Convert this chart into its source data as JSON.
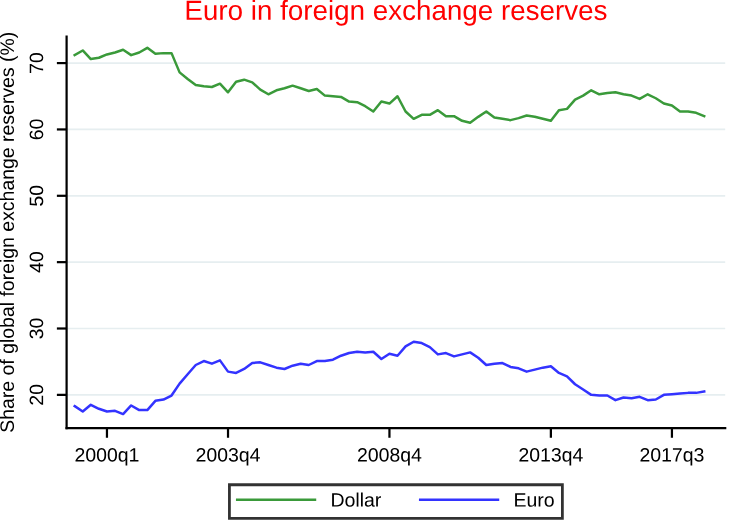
{
  "chart_data": {
    "type": "line",
    "title": "Euro in foreign exchange reserves",
    "ylabel": "Share of global foreign exchange reserves (%)",
    "categories": [
      null,
      null,
      null,
      null,
      "2000q1",
      null,
      null,
      null,
      null,
      null,
      null,
      null,
      null,
      null,
      null,
      null,
      null,
      null,
      null,
      "2003q4",
      null,
      null,
      null,
      null,
      null,
      null,
      null,
      null,
      null,
      null,
      null,
      null,
      null,
      null,
      null,
      null,
      null,
      null,
      null,
      "2008q4",
      null,
      null,
      null,
      null,
      null,
      null,
      null,
      null,
      null,
      null,
      null,
      null,
      null,
      null,
      null,
      null,
      null,
      null,
      null,
      "2013q4",
      null,
      null,
      null,
      null,
      null,
      null,
      null,
      null,
      null,
      null,
      null,
      null,
      null,
      null,
      "2017q3",
      null,
      null,
      null,
      null
    ],
    "series": [
      {
        "name": "Dollar",
        "color": "#3a9a3a",
        "values": [
          71.2,
          71.9,
          70.6,
          70.8,
          71.3,
          71.6,
          72.0,
          71.2,
          71.6,
          72.3,
          71.4,
          71.5,
          71.5,
          68.6,
          67.6,
          66.7,
          66.5,
          66.4,
          66.9,
          65.6,
          67.2,
          67.5,
          67.1,
          66.0,
          65.3,
          65.9,
          66.2,
          66.6,
          66.2,
          65.8,
          66.1,
          65.1,
          65.0,
          64.9,
          64.2,
          64.1,
          63.5,
          62.7,
          64.2,
          63.9,
          65.0,
          62.7,
          61.6,
          62.2,
          62.2,
          62.9,
          62.0,
          62.0,
          61.3,
          61.0,
          61.9,
          62.7,
          61.8,
          61.6,
          61.4,
          61.7,
          62.1,
          61.9,
          61.6,
          61.3,
          62.9,
          63.1,
          64.5,
          65.1,
          65.9,
          65.3,
          65.5,
          65.6,
          65.3,
          65.1,
          64.6,
          65.3,
          64.7,
          63.9,
          63.6,
          62.7,
          62.7,
          62.5,
          62.0
        ]
      },
      {
        "name": "Euro",
        "color": "#3333ff",
        "values": [
          18.3,
          17.5,
          18.5,
          17.9,
          17.5,
          17.6,
          17.1,
          18.4,
          17.7,
          17.7,
          19.1,
          19.3,
          19.9,
          21.7,
          23.1,
          24.5,
          25.1,
          24.7,
          25.2,
          23.5,
          23.3,
          23.9,
          24.8,
          24.9,
          24.5,
          24.1,
          23.9,
          24.4,
          24.7,
          24.5,
          25.1,
          25.1,
          25.3,
          25.9,
          26.3,
          26.5,
          26.4,
          26.5,
          25.4,
          26.2,
          25.9,
          27.3,
          28.0,
          27.8,
          27.2,
          26.1,
          26.3,
          25.8,
          26.1,
          26.4,
          25.6,
          24.5,
          24.7,
          24.8,
          24.2,
          24.0,
          23.5,
          23.8,
          24.1,
          24.3,
          23.3,
          22.8,
          21.6,
          20.8,
          20.0,
          19.9,
          19.9,
          19.2,
          19.6,
          19.5,
          19.7,
          19.2,
          19.3,
          20.0,
          20.1,
          20.2,
          20.3,
          20.3,
          20.5
        ]
      }
    ],
    "ylim": [
      15,
      74
    ],
    "yticks": [
      20,
      30,
      40,
      50,
      60,
      70
    ],
    "grid": "y",
    "legend": "bottom",
    "marker": "none",
    "line_style": "solid"
  }
}
